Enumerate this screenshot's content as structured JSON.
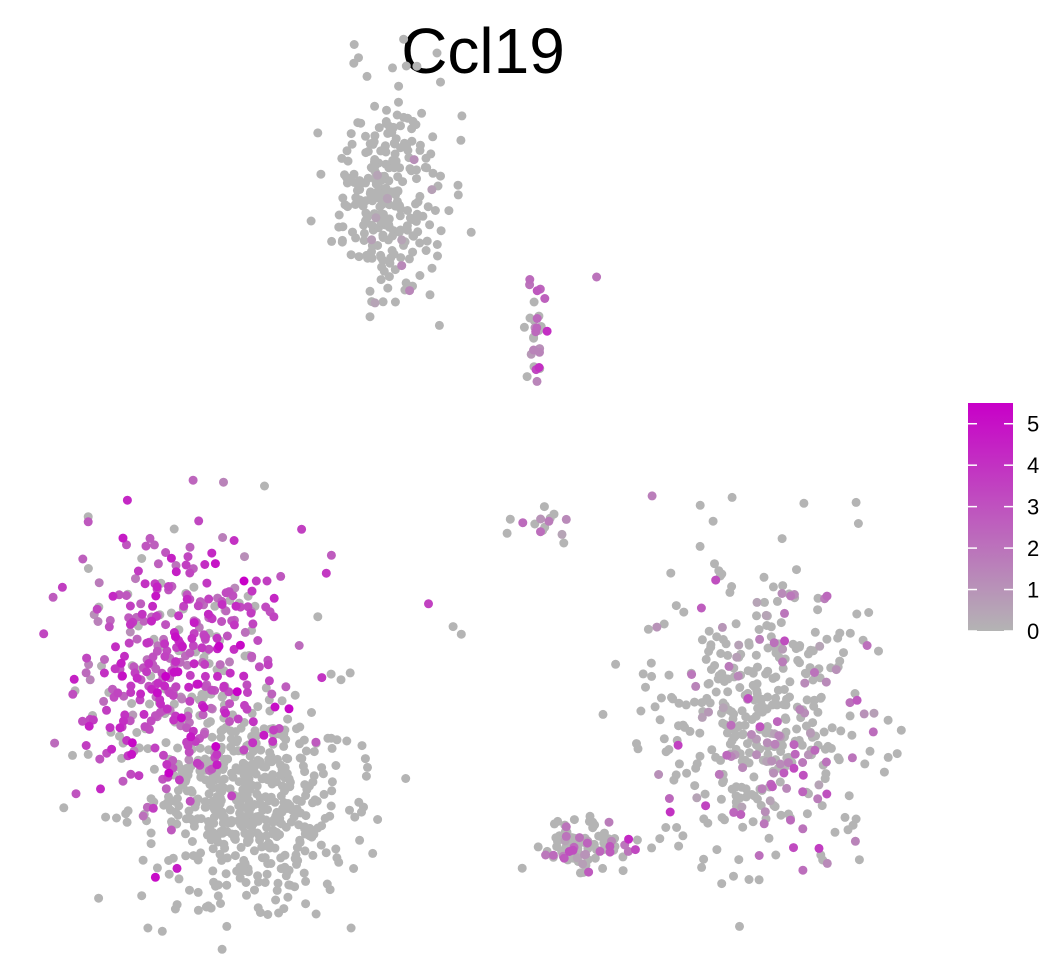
{
  "chart_data": {
    "type": "scatter",
    "title": "Ccl19",
    "xlabel": "",
    "ylabel": "",
    "grid": false,
    "axes_visible": false,
    "legend": {
      "placement": "right",
      "kind": "colorbar",
      "min": 0,
      "max": 5.5,
      "ticks": [
        0,
        1,
        2,
        3,
        4,
        5
      ],
      "tick_labels": [
        "0",
        "1",
        "2",
        "3",
        "4",
        "5"
      ],
      "low_color": "#b4b4b4",
      "high_color": "#c800c8"
    },
    "clusters": [
      {
        "cx": 0.38,
        "cy": 0.82,
        "sx": 0.035,
        "sy": 0.14,
        "n": 260,
        "mean_expr": 0.25,
        "p_expr": 0.05
      },
      {
        "cx": 0.12,
        "cy": -0.42,
        "sx": 0.06,
        "sy": 0.18,
        "n": 420,
        "mean_expr": 3.2,
        "p_expr": 0.8
      },
      {
        "cx": 0.205,
        "cy": -0.78,
        "sx": 0.06,
        "sy": 0.14,
        "n": 520,
        "mean_expr": 0.0,
        "p_expr": 0.0
      },
      {
        "cx": 0.83,
        "cy": -0.55,
        "sx": 0.065,
        "sy": 0.2,
        "n": 460,
        "mean_expr": 1.6,
        "p_expr": 0.22
      },
      {
        "cx": 0.61,
        "cy": -0.9,
        "sx": 0.025,
        "sy": 0.035,
        "n": 90,
        "mean_expr": 1.8,
        "p_expr": 0.3
      },
      {
        "cx": 0.555,
        "cy": 0.45,
        "sx": 0.006,
        "sy": 0.05,
        "n": 30,
        "mean_expr": 2.2,
        "p_expr": 0.5
      },
      {
        "cx": 0.555,
        "cy": -0.05,
        "sx": 0.02,
        "sy": 0.02,
        "n": 14,
        "mean_expr": 1.5,
        "p_expr": 0.35
      }
    ],
    "outliers": [
      {
        "x": 0.63,
        "y": 0.6,
        "expr": 2.0
      },
      {
        "x": 0.2,
        "y": -0.2,
        "expr": 5.5
      },
      {
        "x": 0.215,
        "y": -0.2,
        "expr": 3.8
      },
      {
        "x": 0.228,
        "y": -0.2,
        "expr": 3.6
      },
      {
        "x": 0.205,
        "y": -0.24,
        "expr": 0
      },
      {
        "x": 0.425,
        "y": -0.26,
        "expr": 3.5
      },
      {
        "x": 0.455,
        "y": -0.32,
        "expr": 0
      },
      {
        "x": 0.465,
        "y": -0.34,
        "expr": 0
      },
      {
        "x": 0.59,
        "y": -0.1,
        "expr": 0
      },
      {
        "x": 0.225,
        "y": 0.05,
        "expr": 0
      },
      {
        "x": 0.175,
        "y": 0.06,
        "expr": 1.5
      },
      {
        "x": 0.29,
        "y": -0.85,
        "expr": 0
      },
      {
        "x": 0.27,
        "y": -0.78,
        "expr": 0
      }
    ]
  }
}
